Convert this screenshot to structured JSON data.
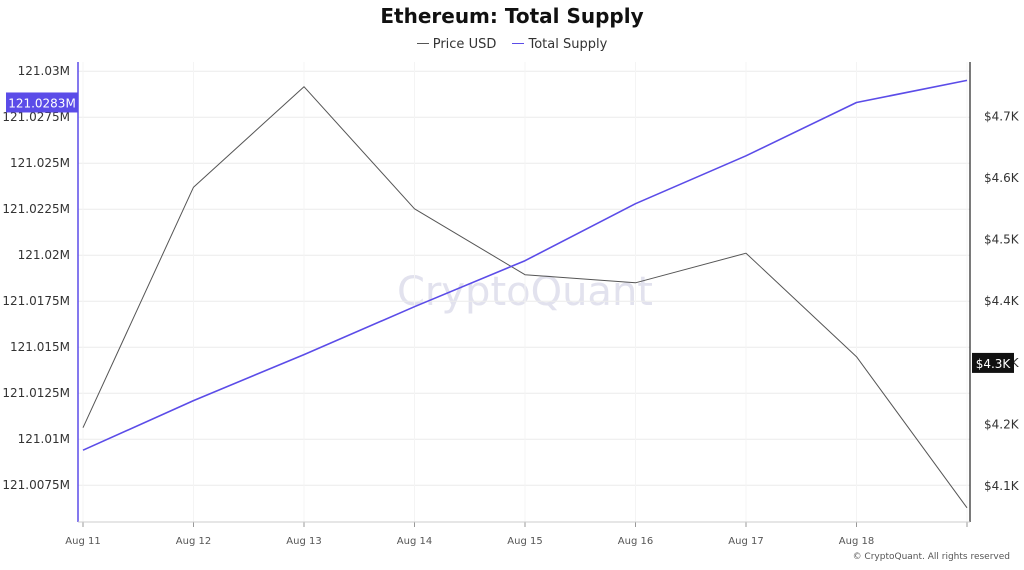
{
  "chart_data": {
    "type": "line",
    "title": "Ethereum: Total Supply",
    "categories": [
      "Aug 11",
      "Aug 12",
      "Aug 13",
      "Aug 14",
      "Aug 15",
      "Aug 16",
      "Aug 17",
      "Aug 18",
      ""
    ],
    "series": [
      {
        "name": "Price USD",
        "axis": "right",
        "color": "#555555",
        "values": [
          4195,
          4585,
          4748,
          4550,
          4443,
          4430,
          4478,
          4310,
          4065
        ]
      },
      {
        "name": "Total Supply",
        "axis": "left",
        "color": "#5b4ce8",
        "values": [
          121.0094,
          121.0121,
          121.0146,
          121.0172,
          121.0197,
          121.0228,
          121.0254,
          121.0283,
          121.0295
        ]
      }
    ],
    "y_left": {
      "ticks": [
        121.0075,
        121.01,
        121.0125,
        121.015,
        121.0175,
        121.02,
        121.0225,
        121.025,
        121.0275,
        121.03
      ],
      "tick_labels": [
        "121.0075M",
        "121.01M",
        "121.0125M",
        "121.015M",
        "121.0175M",
        "121.02M",
        "121.0225M",
        "121.025M",
        "121.0275M",
        "121.03M"
      ],
      "range": [
        121.0055,
        121.0305
      ],
      "current_label": "121.0283M",
      "current_value": 121.0283
    },
    "y_right": {
      "ticks": [
        4100,
        4200,
        4300,
        4400,
        4500,
        4600,
        4700
      ],
      "tick_labels": [
        "$4.1K",
        "$4.2K",
        "$4.3K",
        "$4.4K",
        "$4.5K",
        "$4.6K",
        "$4.7K"
      ],
      "range": [
        4042,
        4788
      ],
      "current_label": "$4.3K",
      "current_value": 4300
    },
    "grid": true,
    "legend": "top-center"
  },
  "watermark": "CryptoQuant",
  "footer": "© CryptoQuant. All rights reserved",
  "colors": {
    "supply": "#5b4ce8",
    "price": "#555555",
    "grid": "#ececec"
  }
}
